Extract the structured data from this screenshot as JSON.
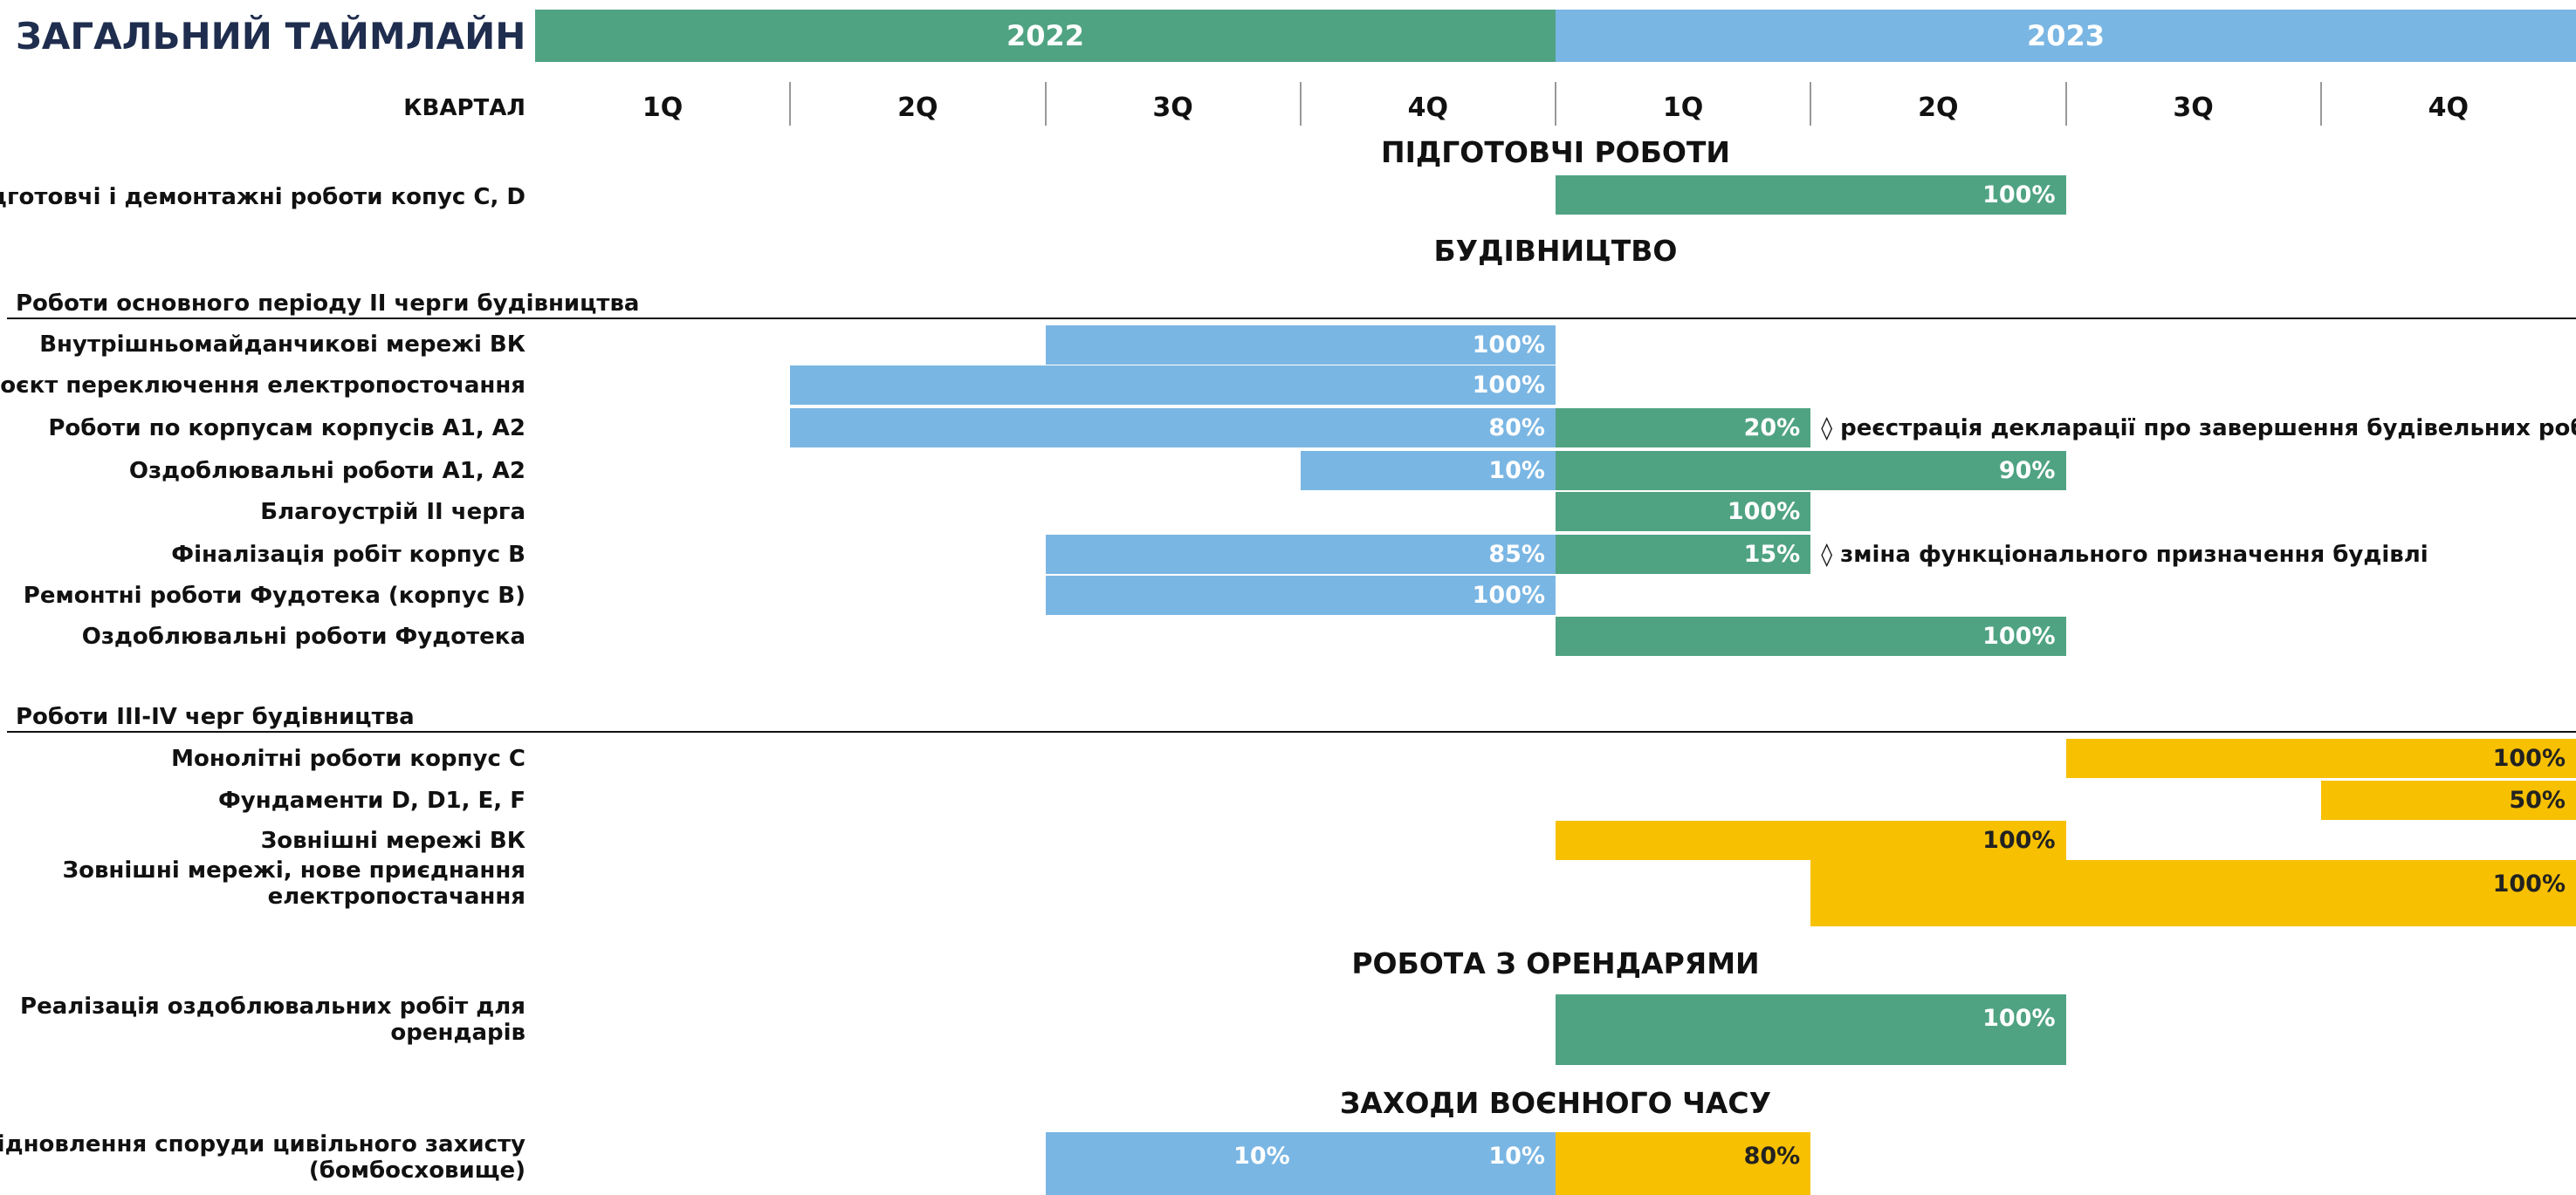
{
  "title": "ЗАГАЛЬНИЙ ТАЙМЛАЙН",
  "years": [
    {
      "label": "2022",
      "color": "#4fa383"
    },
    {
      "label": "2023",
      "color": "#7ab6e3"
    }
  ],
  "quarter_header": "КВАРТАЛ",
  "quarters": [
    "1Q",
    "2Q",
    "3Q",
    "4Q",
    "1Q",
    "2Q",
    "3Q",
    "4Q"
  ],
  "items": [
    {
      "section": "ПІДГОТОВЧІ РОБОТИ"
    },
    {
      "task": [
        "Підготовчі і демонтажні роботи копус C, D"
      ],
      "bars": [
        {
          "start": 4,
          "end": 6,
          "color": "#4fa383",
          "label": "100%"
        }
      ]
    },
    {
      "section": "БУДІВНИЦТВО"
    },
    {
      "group": "Роботи основного періоду II черги будівництва"
    },
    {
      "task": [
        "Внутрішньомайданчикові мережі ВК"
      ],
      "bars": [
        {
          "start": 2,
          "end": 4,
          "color": "#7ab6e3",
          "label": "100%"
        }
      ]
    },
    {
      "task": [
        "Проєкт переключення електропосточання"
      ],
      "bars": [
        {
          "start": 1,
          "end": 4,
          "color": "#7ab6e3",
          "label": "100%"
        }
      ]
    },
    {
      "task": [
        "Роботи по корпусам корпусів А1, А2"
      ],
      "bars": [
        {
          "start": 1,
          "end": 4,
          "color": "#7ab6e3",
          "label": "80%"
        },
        {
          "start": 4,
          "end": 5,
          "color": "#4fa383",
          "label": "20%"
        }
      ],
      "note": "◊ реєстрація декларації про завершення будівельних робіт"
    },
    {
      "task": [
        "Оздоблювальні роботи А1, А2"
      ],
      "bars": [
        {
          "start": 3,
          "end": 4,
          "color": "#7ab6e3",
          "label": "10%"
        },
        {
          "start": 4,
          "end": 6,
          "color": "#4fa383",
          "label": "90%"
        }
      ]
    },
    {
      "task": [
        "Благоустрій II черга"
      ],
      "bars": [
        {
          "start": 4,
          "end": 5,
          "color": "#4fa383",
          "label": "100%"
        }
      ]
    },
    {
      "task": [
        "Фіналізація робіт корпус В"
      ],
      "bars": [
        {
          "start": 2,
          "end": 4,
          "color": "#7ab6e3",
          "label": "85%"
        },
        {
          "start": 4,
          "end": 5,
          "color": "#4fa383",
          "label": "15%"
        }
      ],
      "note": "◊ зміна функціонального призначення будівлі"
    },
    {
      "task": [
        "Ремонтні роботи Фудотека (корпус В)"
      ],
      "bars": [
        {
          "start": 2,
          "end": 4,
          "color": "#7ab6e3",
          "label": "100%"
        }
      ]
    },
    {
      "task": [
        "Оздоблювальні роботи Фудотека"
      ],
      "bars": [
        {
          "start": 4,
          "end": 6,
          "color": "#4fa383",
          "label": "100%"
        }
      ]
    },
    {
      "group": "Роботи III-IV черг будівництва"
    },
    {
      "task": [
        "Монолітні роботи корпус С"
      ],
      "bars": [
        {
          "start": 6,
          "end": 8,
          "color": "#f7c000",
          "label": "100%"
        }
      ]
    },
    {
      "task": [
        "Фундаменти D, D1, E, F"
      ],
      "bars": [
        {
          "start": 7,
          "end": 8,
          "color": "#f7c000",
          "label": "50%"
        }
      ]
    },
    {
      "task": [
        "Зовнішні мережі ВК"
      ],
      "bars": [
        {
          "start": 4,
          "end": 6,
          "color": "#f7c000",
          "label": "100%"
        }
      ]
    },
    {
      "task": [
        "Зовнішні мережі, нове приєднання",
        "електропостачання"
      ],
      "bars": [
        {
          "start": 5,
          "end": 8,
          "color": "#f7c000",
          "label": "100%"
        }
      ]
    },
    {
      "section": "РОБОТА З ОРЕНДАРЯМИ"
    },
    {
      "task": [
        "Реалізація оздоблювальних робіт для",
        "орендарів"
      ],
      "bars": [
        {
          "start": 4,
          "end": 6,
          "color": "#4fa383",
          "label": "100%"
        }
      ]
    },
    {
      "section": "ЗАХОДИ ВОЄННОГО ЧАСУ"
    },
    {
      "task": [
        "Відновлення споруди цивільного захисту",
        "(бомбосховище)"
      ],
      "bars": [
        {
          "start": 2,
          "end": 3,
          "color": "#7ab6e3",
          "label": "10%"
        },
        {
          "start": 3,
          "end": 4,
          "color": "#7ab6e3",
          "label": "10%"
        },
        {
          "start": 4,
          "end": 5,
          "color": "#f7c000",
          "label": "80%"
        }
      ]
    }
  ]
}
